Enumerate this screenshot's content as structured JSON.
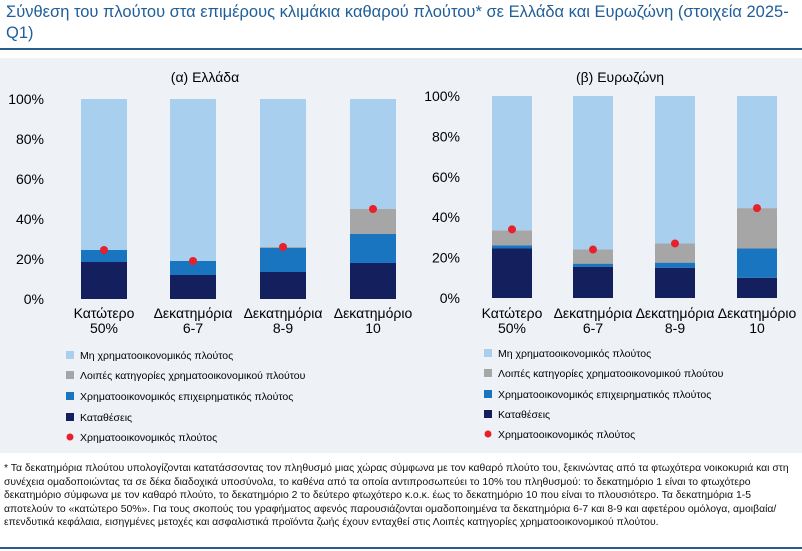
{
  "title": "Σύνθεση του πλούτου στα επιμέρους κλιμάκια καθαρού πλούτου* σε Ελλάδα και Ευρωζώνη (στοιχεία 2025-Q1)",
  "colors": {
    "non_financial": "#a9cfee",
    "other_financial": "#a6a6a6",
    "business_financial": "#1a75c0",
    "deposits": "#14205e",
    "financial_wealth_marker": "#e8202a",
    "title": "#1f5e99"
  },
  "chart_data": [
    {
      "type": "bar",
      "stacked": true,
      "title": "(α) Ελλάδα",
      "categories": [
        [
          "Κατώτερο",
          "50%"
        ],
        [
          "Δεκατημόρια",
          "6-7"
        ],
        [
          "Δεκατημόρια",
          "8-9"
        ],
        [
          "Δεκατημόριο",
          "10"
        ]
      ],
      "yticks": [
        "100%",
        "80%",
        "60%",
        "40%",
        "20%",
        "0%"
      ],
      "ylim": [
        0,
        100
      ],
      "series": [
        {
          "name": "Καταθέσεις",
          "color_key": "deposits",
          "values": [
            18.5,
            12,
            13.5,
            18
          ]
        },
        {
          "name": "Χρηματοοικονομικός επιχειρηματικός πλούτος",
          "color_key": "business_financial",
          "values": [
            6,
            7,
            12,
            14.5
          ]
        },
        {
          "name": "Λοιπές κατηγορίες χρηματοοικονομικού πλούτου",
          "color_key": "other_financial",
          "values": [
            0,
            0,
            0.5,
            12.5
          ]
        },
        {
          "name": "Μη χρηματοοικονομικός πλούτος",
          "color_key": "non_financial",
          "values": [
            75.5,
            81,
            74,
            55
          ]
        }
      ],
      "markers": {
        "name": "Χρηματοοικονομικός πλούτος",
        "values": [
          24.5,
          19,
          26,
          45
        ]
      }
    },
    {
      "type": "bar",
      "stacked": true,
      "title": "(β) Ευρωζώνη",
      "categories": [
        [
          "Κατώτερο",
          "50%"
        ],
        [
          "Δεκατημόρια",
          "6-7"
        ],
        [
          "Δεκατημόρια",
          "8-9"
        ],
        [
          "Δεκατημόριο",
          "10"
        ]
      ],
      "yticks": [
        "100%",
        "80%",
        "60%",
        "40%",
        "20%",
        "0%"
      ],
      "ylim": [
        0,
        100
      ],
      "series": [
        {
          "name": "Καταθέσεις",
          "color_key": "deposits",
          "values": [
            24.5,
            15.5,
            15,
            10
          ]
        },
        {
          "name": "Χρηματοοικονομικός επιχειρηματικός πλούτος",
          "color_key": "business_financial",
          "values": [
            1.5,
            1.5,
            2.5,
            14.5
          ]
        },
        {
          "name": "Λοιπές κατηγορίες χρηματοοικονομικού πλούτου",
          "color_key": "other_financial",
          "values": [
            7.5,
            7,
            9.5,
            20
          ]
        },
        {
          "name": "Μη χρηματοοικονομικός πλούτος",
          "color_key": "non_financial",
          "values": [
            66.5,
            76,
            73,
            55.5
          ]
        }
      ],
      "markers": {
        "name": "Χρηματοοικονομικός πλούτος",
        "values": [
          34,
          24,
          27,
          44.5
        ]
      }
    }
  ],
  "legend": [
    {
      "label": "Μη χρηματοοικονομικός πλούτος",
      "color_key": "non_financial",
      "kind": "square"
    },
    {
      "label": "Λοιπές κατηγορίες χρηματοοικονομικού πλούτου",
      "color_key": "other_financial",
      "kind": "square"
    },
    {
      "label": "Χρηματοοικονομικός επιχειρηματικός πλούτος",
      "color_key": "business_financial",
      "kind": "square"
    },
    {
      "label": "Καταθέσεις",
      "color_key": "deposits",
      "kind": "square"
    },
    {
      "label": "Χρηματοοικονομικός πλούτος",
      "color_key": "financial_wealth_marker",
      "kind": "dot"
    }
  ],
  "footnote": "* Τα δεκατημόρια πλούτου υπολογίζονται κατατάσσοντας τον πληθυσμό μιας χώρας σύμφωνα με τον καθαρό πλούτο του, ξεκινώντας από τα φτωχότερα νοικοκυριά και στη συνέχεια ομαδοποιώντας τα σε δέκα διαδοχικά υποσύνολα, το καθένα από τα οποία αντιπροσωπεύει το 10% του πληθυσμού: το δεκατημόριο 1 είναι το φτωχότερο δεκατημόριο σύμφωνα με τον καθαρό πλούτο, το δεκατημόριο 2 το δεύτερο φτωχότερο κ.ο.κ. έως το δεκατημόριο 10 που είναι το πλουσιότερο. Τα δεκατημόρια 1-5 αποτελούν το «κατώτερο 50%». Για τους σκοπούς του γραφήματος αφενός παρουσιάζονται ομαδοποιημένα τα δεκατημόρια 6-7 και 8-9 και αφετέρου ομόλογα, αμοιβαία/επενδυτικά κεφάλαια, εισηγμένες μετοχές και ασφαλιστικά προϊόντα ζωής έχουν ενταχθεί στις Λοιπές κατηγορίες χρηματοοικονομικού πλούτου."
}
